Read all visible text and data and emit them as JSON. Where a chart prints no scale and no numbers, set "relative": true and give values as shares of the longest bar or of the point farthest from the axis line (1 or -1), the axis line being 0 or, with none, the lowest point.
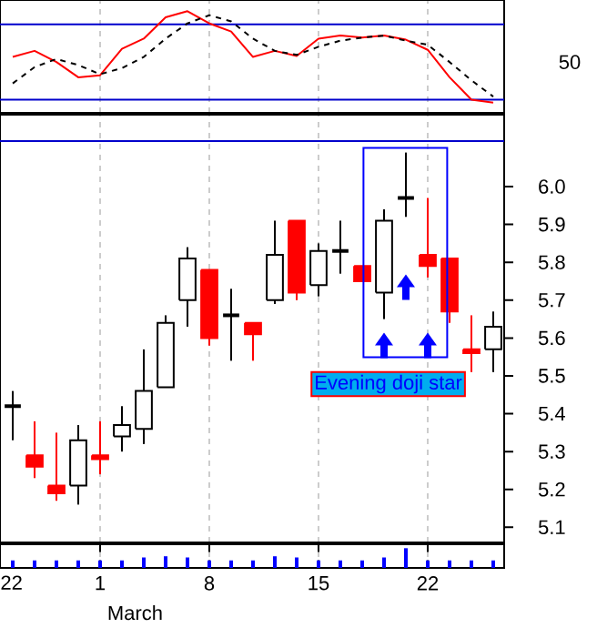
{
  "chart_data": [
    {
      "type": "line",
      "categories": [
        null,
        null,
        null,
        null,
        "1",
        null,
        null,
        null,
        null,
        "8",
        null,
        null,
        null,
        null,
        "15",
        null,
        null,
        null,
        null,
        "22",
        null,
        null,
        null
      ],
      "series": [
        {
          "color": "#ff0000",
          "line_style": "solid",
          "values": [
            0.55,
            0.61,
            0.5,
            0.35,
            0.37,
            0.63,
            0.73,
            0.94,
            1,
            0.88,
            0.8,
            0.55,
            0.61,
            0.56,
            0.73,
            0.76,
            0.74,
            0.76,
            0.72,
            0.62,
            0.35,
            0.13,
            0.1
          ]
        },
        {
          "color": "#000000",
          "line_style": "dashed",
          "values": [
            0.29,
            0.45,
            0.53,
            0.47,
            0.38,
            0.44,
            0.55,
            0.73,
            0.88,
            0.96,
            0.9,
            0.73,
            0.61,
            0.57,
            0.65,
            0.71,
            0.74,
            0.76,
            0.71,
            0.67,
            0.5,
            0.32,
            0.16
          ]
        }
      ],
      "relative": true,
      "ref_lines": [
        {
          "axis": "y",
          "value": 0.87,
          "color": "#0000cc"
        },
        {
          "axis": "y",
          "value": 0.13,
          "color": "#0000cc"
        }
      ],
      "annotations": [
        "50"
      ],
      "grid": "x",
      "tick_labels": false
    },
    {
      "type": "candlestick",
      "categories": [
        null,
        null,
        null,
        null,
        "1",
        null,
        null,
        null,
        null,
        "8",
        null,
        null,
        null,
        null,
        "15",
        null,
        null,
        null,
        null,
        "22",
        null,
        null,
        null
      ],
      "ohlc": [
        [
          5.42,
          5.46,
          5.33,
          5.42
        ],
        [
          5.29,
          5.38,
          5.23,
          5.26
        ],
        [
          5.21,
          5.35,
          5.17,
          5.19
        ],
        [
          5.21,
          5.37,
          5.16,
          5.33
        ],
        [
          5.29,
          5.38,
          5.24,
          5.28
        ],
        [
          5.34,
          5.42,
          5.3,
          5.37
        ],
        [
          5.36,
          5.57,
          5.32,
          5.46
        ],
        [
          5.47,
          5.66,
          5.47,
          5.64
        ],
        [
          5.7,
          5.84,
          5.63,
          5.81
        ],
        [
          5.78,
          5.78,
          5.58,
          5.6
        ],
        [
          5.66,
          5.73,
          5.54,
          5.66
        ],
        [
          5.64,
          5.64,
          5.54,
          5.61
        ],
        [
          5.7,
          5.91,
          5.69,
          5.82
        ],
        [
          5.91,
          5.91,
          5.7,
          5.72
        ],
        [
          5.74,
          5.85,
          5.71,
          5.83
        ],
        [
          5.83,
          5.91,
          5.77,
          5.83
        ],
        [
          5.79,
          5.79,
          5.75,
          5.75
        ],
        [
          5.72,
          5.94,
          5.65,
          5.91
        ],
        [
          5.97,
          6.09,
          5.92,
          5.97
        ],
        [
          5.82,
          5.97,
          5.76,
          5.79
        ],
        [
          5.81,
          5.81,
          5.64,
          5.67
        ],
        [
          5.57,
          5.66,
          5.51,
          5.56
        ],
        [
          5.57,
          5.67,
          5.51,
          5.63
        ]
      ],
      "colors": [
        "#000000",
        "#ff0000",
        "#ff0000",
        "#ffffff",
        "#ff0000",
        "#ffffff",
        "#ffffff",
        "#ffffff",
        "#ffffff",
        "#ff0000",
        "#000000",
        "#ff0000",
        "#ffffff",
        "#ff0000",
        "#ffffff",
        "#000000",
        "#ff0000",
        "#ffffff",
        "#000000",
        "#ff0000",
        "#ff0000",
        "#ff0000",
        "#ffffff"
      ],
      "ylim": [
        5.06,
        6.19
      ],
      "yticks": [
        5.1,
        5.2,
        5.3,
        5.4,
        5.5,
        5.6,
        5.7,
        5.8,
        5.9,
        {
          "value": 6.0,
          "label": "6.0"
        }
      ],
      "ref_lines": [
        {
          "axis": "y",
          "value": 6.12,
          "color": "#0000cc"
        }
      ],
      "annotations": [
        "Evening doji star"
      ],
      "grid": "x",
      "tick_labels": "y"
    },
    {
      "type": "bar",
      "categories": [
        null,
        null,
        null,
        null,
        "1",
        null,
        null,
        null,
        null,
        "8",
        null,
        null,
        null,
        null,
        "15",
        null,
        null,
        null,
        null,
        "22",
        null,
        null,
        null
      ],
      "values": [
        0.38,
        0.38,
        0.38,
        0.38,
        0.38,
        0.38,
        0.53,
        0.59,
        0.53,
        0.38,
        0.38,
        0.38,
        0.59,
        0.53,
        0.38,
        0.38,
        0.38,
        0.53,
        1,
        0.38,
        0.38,
        0.38,
        0.38
      ],
      "color": "#0000ff",
      "relative": true,
      "xlabel": "March",
      "annotations": [
        "22"
      ],
      "grid": "x",
      "tick_labels": "x"
    }
  ]
}
